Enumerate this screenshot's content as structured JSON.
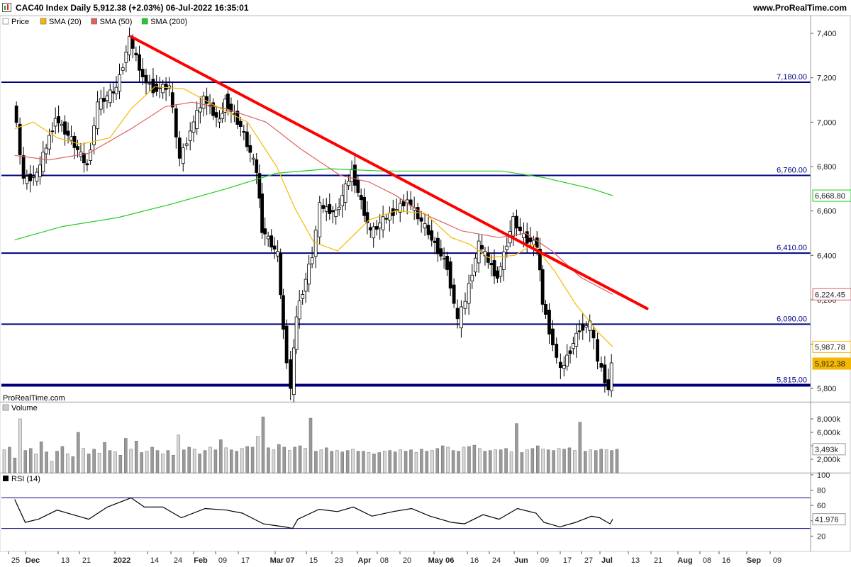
{
  "header": {
    "title": "CAC40 Index Daily 5,912.38 (+2.03%) 06-Jul-2022 16:35:01",
    "brand": "www.ProRealTime.com",
    "watermark": "ProRealTime.com"
  },
  "legend": [
    {
      "label": "Price",
      "color": "#ffffff"
    },
    {
      "label": "SMA (20)",
      "color": "#f5b800"
    },
    {
      "label": "SMA (50)",
      "color": "#e06060"
    },
    {
      "label": "SMA (200)",
      "color": "#22cc22"
    }
  ],
  "volume_legend": "Volume",
  "rsi_legend": "RSI (14)",
  "chart_data": [
    {
      "type": "candlestick",
      "title": "CAC40 Index Daily",
      "ylim": [
        5740,
        7480
      ],
      "y_ticks": [
        "7,400",
        "7,200",
        "7,000",
        "6,800",
        "6,600",
        "6,400",
        "6,200",
        "6,000",
        "5,800"
      ],
      "x_labels": [
        "25",
        "Dec",
        "13",
        "21",
        "2022",
        "14",
        "24",
        "Feb",
        "09",
        "17",
        "Mar 07",
        "15",
        "23",
        "Apr",
        "08",
        "20",
        "May 06",
        "16",
        "24",
        "Jun",
        "09",
        "17",
        "27",
        "Jul",
        "13",
        "21",
        "Aug",
        "08",
        "16",
        "Sep",
        "09"
      ],
      "levels": [
        {
          "value": 7180,
          "label": "7,180.00"
        },
        {
          "value": 6760,
          "label": "6,760.00"
        },
        {
          "value": 6410,
          "label": "6,410.00"
        },
        {
          "value": 6090,
          "label": "6,090.00"
        },
        {
          "value": 5815,
          "label": "5,815.00"
        }
      ],
      "trendline": {
        "from": {
          "date": "2022-01-05",
          "value": 7385
        },
        "to": {
          "date": "2022-07-19",
          "value": 6160
        },
        "color": "#ff0000"
      },
      "current_value_labels": [
        {
          "value": 6668.8,
          "label": "6,668.80",
          "color": "#22cc22"
        },
        {
          "value": 6224.45,
          "label": "6,224.45",
          "color": "#e06060"
        },
        {
          "value": 5987.78,
          "label": "5,987.78",
          "color": "#f5b800"
        },
        {
          "value": 5912.38,
          "label": "5,912.38",
          "color": "#f5b800"
        }
      ],
      "price_path": [
        [
          "2021-11-22",
          7100
        ],
        [
          "2021-11-26",
          6740
        ],
        [
          "2021-12-01",
          6760
        ],
        [
          "2021-12-08",
          7020
        ],
        [
          "2021-12-14",
          6920
        ],
        [
          "2021-12-20",
          6800
        ],
        [
          "2021-12-24",
          7080
        ],
        [
          "2021-12-31",
          7150
        ],
        [
          "2022-01-05",
          7376
        ],
        [
          "2022-01-10",
          7200
        ],
        [
          "2022-01-14",
          7150
        ],
        [
          "2022-01-20",
          7160
        ],
        [
          "2022-01-24",
          6830
        ],
        [
          "2022-01-28",
          6960
        ],
        [
          "2022-02-02",
          7110
        ],
        [
          "2022-02-08",
          7000
        ],
        [
          "2022-02-10",
          7100
        ],
        [
          "2022-02-16",
          6980
        ],
        [
          "2022-02-22",
          6780
        ],
        [
          "2022-02-24",
          6520
        ],
        [
          "2022-03-02",
          6400
        ],
        [
          "2022-03-04",
          6060
        ],
        [
          "2022-03-07",
          5800
        ],
        [
          "2022-03-09",
          6130
        ],
        [
          "2022-03-15",
          6400
        ],
        [
          "2022-03-18",
          6620
        ],
        [
          "2022-03-24",
          6590
        ],
        [
          "2022-03-30",
          6780
        ],
        [
          "2022-04-06",
          6500
        ],
        [
          "2022-04-12",
          6570
        ],
        [
          "2022-04-20",
          6650
        ],
        [
          "2022-04-28",
          6500
        ],
        [
          "2022-05-05",
          6350
        ],
        [
          "2022-05-09",
          6100
        ],
        [
          "2022-05-12",
          6200
        ],
        [
          "2022-05-17",
          6450
        ],
        [
          "2022-05-24",
          6300
        ],
        [
          "2022-05-30",
          6560
        ],
        [
          "2022-06-03",
          6480
        ],
        [
          "2022-06-08",
          6450
        ],
        [
          "2022-06-10",
          6190
        ],
        [
          "2022-06-14",
          6000
        ],
        [
          "2022-06-17",
          5880
        ],
        [
          "2022-06-24",
          6070
        ],
        [
          "2022-06-28",
          6090
        ],
        [
          "2022-07-01",
          5930
        ],
        [
          "2022-07-05",
          5795
        ],
        [
          "2022-07-06",
          5912
        ]
      ],
      "sma20": [
        [
          "2021-11-22",
          6970
        ],
        [
          "2021-11-29",
          7000
        ],
        [
          "2021-12-08",
          6930
        ],
        [
          "2021-12-17",
          6900
        ],
        [
          "2021-12-28",
          6930
        ],
        [
          "2022-01-05",
          7060
        ],
        [
          "2022-01-14",
          7160
        ],
        [
          "2022-01-25",
          7150
        ],
        [
          "2022-02-08",
          7060
        ],
        [
          "2022-02-18",
          7000
        ],
        [
          "2022-03-01",
          6800
        ],
        [
          "2022-03-08",
          6610
        ],
        [
          "2022-03-15",
          6460
        ],
        [
          "2022-03-24",
          6420
        ],
        [
          "2022-04-05",
          6560
        ],
        [
          "2022-04-15",
          6600
        ],
        [
          "2022-04-26",
          6590
        ],
        [
          "2022-05-06",
          6480
        ],
        [
          "2022-05-13",
          6450
        ],
        [
          "2022-05-20",
          6390
        ],
        [
          "2022-05-30",
          6400
        ],
        [
          "2022-06-06",
          6450
        ],
        [
          "2022-06-14",
          6330
        ],
        [
          "2022-06-22",
          6180
        ],
        [
          "2022-06-30",
          6060
        ],
        [
          "2022-07-06",
          5988
        ]
      ],
      "sma50": [
        [
          "2021-11-22",
          6850
        ],
        [
          "2021-12-05",
          6830
        ],
        [
          "2021-12-20",
          6860
        ],
        [
          "2022-01-05",
          6970
        ],
        [
          "2022-01-18",
          7070
        ],
        [
          "2022-01-28",
          7090
        ],
        [
          "2022-02-10",
          7060
        ],
        [
          "2022-02-25",
          7000
        ],
        [
          "2022-03-10",
          6880
        ],
        [
          "2022-03-25",
          6760
        ],
        [
          "2022-04-05",
          6730
        ],
        [
          "2022-04-15",
          6670
        ],
        [
          "2022-04-25",
          6590
        ],
        [
          "2022-05-10",
          6510
        ],
        [
          "2022-05-24",
          6480
        ],
        [
          "2022-06-03",
          6500
        ],
        [
          "2022-06-13",
          6420
        ],
        [
          "2022-06-24",
          6300
        ],
        [
          "2022-07-06",
          6224
        ]
      ],
      "sma200": [
        [
          "2021-11-22",
          6470
        ],
        [
          "2021-12-10",
          6530
        ],
        [
          "2021-12-31",
          6570
        ],
        [
          "2022-01-20",
          6630
        ],
        [
          "2022-02-10",
          6700
        ],
        [
          "2022-03-01",
          6770
        ],
        [
          "2022-03-21",
          6790
        ],
        [
          "2022-04-10",
          6780
        ],
        [
          "2022-05-01",
          6780
        ],
        [
          "2022-05-25",
          6780
        ],
        [
          "2022-06-10",
          6750
        ],
        [
          "2022-06-28",
          6700
        ],
        [
          "2022-07-06",
          6669
        ]
      ]
    },
    {
      "type": "bar",
      "title": "Volume",
      "ylim": [
        0,
        10000
      ],
      "y_ticks": [
        "8,000k",
        "6,000k",
        "4,000k",
        "2,000k"
      ],
      "last_value_label": "3,493k",
      "values_k": [
        3400,
        3800,
        2200,
        8000,
        3300,
        3600,
        2800,
        4600,
        3100,
        1700,
        3200,
        3900,
        2800,
        2400,
        6000,
        3600,
        2800,
        3500,
        2900,
        4500,
        3300,
        3100,
        2600,
        5100,
        3500,
        4700,
        3000,
        3200,
        3800,
        3300,
        2800,
        3300,
        2600,
        5600,
        3400,
        3800,
        3500,
        2800,
        3300,
        3800,
        3400,
        4900,
        3700,
        3400,
        3200,
        3600,
        3900,
        3800,
        5400,
        8300,
        3700,
        3400,
        4200,
        3800,
        3300,
        3800,
        4000,
        3600,
        8100,
        3200,
        3400,
        3700,
        3200,
        3300,
        3100,
        3300,
        3500,
        3200,
        3200,
        3000,
        2800,
        3000,
        3200,
        3300,
        3100,
        3400,
        3200,
        3400,
        3000,
        3500,
        3200,
        3300,
        3600,
        4000,
        3800,
        3300,
        3200,
        3800,
        3900,
        4100,
        3600,
        3200,
        3300,
        3400,
        3400,
        3600,
        3100,
        7300,
        3000,
        3400,
        3600,
        4000,
        3500,
        3400,
        3300,
        3600,
        3500,
        3700,
        3300,
        7500,
        3200,
        3400,
        3300,
        3500,
        3400,
        3300,
        3493
      ],
      "color": "#9a9a9a"
    },
    {
      "type": "line",
      "title": "RSI (14)",
      "ylim": [
        0,
        100
      ],
      "y_ticks": [
        "100",
        "80",
        "60",
        "40",
        "20"
      ],
      "bands": [
        70,
        30
      ],
      "last_value_label": "41.976",
      "series": [
        [
          "2021-11-22",
          68
        ],
        [
          "2021-11-26",
          38
        ],
        [
          "2021-12-01",
          42
        ],
        [
          "2021-12-08",
          54
        ],
        [
          "2021-12-14",
          48
        ],
        [
          "2021-12-20",
          42
        ],
        [
          "2021-12-27",
          58
        ],
        [
          "2022-01-05",
          70
        ],
        [
          "2022-01-10",
          58
        ],
        [
          "2022-01-17",
          58
        ],
        [
          "2022-01-24",
          44
        ],
        [
          "2022-02-02",
          56
        ],
        [
          "2022-02-10",
          54
        ],
        [
          "2022-02-16",
          50
        ],
        [
          "2022-02-24",
          36
        ],
        [
          "2022-03-04",
          32
        ],
        [
          "2022-03-07",
          30
        ],
        [
          "2022-03-09",
          42
        ],
        [
          "2022-03-17",
          55
        ],
        [
          "2022-03-24",
          52
        ],
        [
          "2022-03-30",
          58
        ],
        [
          "2022-04-06",
          46
        ],
        [
          "2022-04-14",
          52
        ],
        [
          "2022-04-21",
          56
        ],
        [
          "2022-04-28",
          46
        ],
        [
          "2022-05-06",
          38
        ],
        [
          "2022-05-11",
          36
        ],
        [
          "2022-05-18",
          48
        ],
        [
          "2022-05-24",
          42
        ],
        [
          "2022-05-31",
          56
        ],
        [
          "2022-06-07",
          50
        ],
        [
          "2022-06-10",
          38
        ],
        [
          "2022-06-16",
          32
        ],
        [
          "2022-06-22",
          38
        ],
        [
          "2022-06-28",
          46
        ],
        [
          "2022-07-01",
          44
        ],
        [
          "2022-07-05",
          36
        ],
        [
          "2022-07-06",
          42
        ]
      ]
    }
  ],
  "colors": {
    "level": "#00007f",
    "trendline": "#ff0000",
    "candle_up": "#ffffff",
    "candle_down": "#000000",
    "axis_text": "#222222",
    "grid_border": "#cccccc"
  }
}
